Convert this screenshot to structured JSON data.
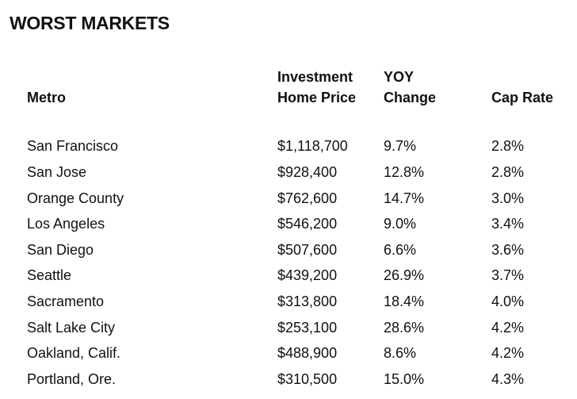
{
  "title": "WORST MARKETS",
  "columns": {
    "metro": "Metro",
    "price_line1": "Investment",
    "price_line2": "Home Price",
    "yoy_line1": "YOY",
    "yoy_line2": "Change",
    "cap_rate": "Cap Rate"
  },
  "rows": [
    {
      "metro": "San Francisco",
      "price": "$1,118,700",
      "yoy": "9.7%",
      "cap": "2.8%"
    },
    {
      "metro": "San Jose",
      "price": "$928,400",
      "yoy": "12.8%",
      "cap": "2.8%"
    },
    {
      "metro": "Orange County",
      "price": "$762,600",
      "yoy": "14.7%",
      "cap": "3.0%"
    },
    {
      "metro": "Los Angeles",
      "price": "$546,200",
      "yoy": "9.0%",
      "cap": "3.4%"
    },
    {
      "metro": "San Diego",
      "price": "$507,600",
      "yoy": "6.6%",
      "cap": "3.6%"
    },
    {
      "metro": "Seattle",
      "price": "$439,200",
      "yoy": "26.9%",
      "cap": "3.7%"
    },
    {
      "metro": "Sacramento",
      "price": "$313,800",
      "yoy": "18.4%",
      "cap": "4.0%"
    },
    {
      "metro": "Salt Lake City",
      "price": "$253,100",
      "yoy": "28.6%",
      "cap": "4.2%"
    },
    {
      "metro": "Oakland, Calif.",
      "price": "$488,900",
      "yoy": "8.6%",
      "cap": "4.2%"
    },
    {
      "metro": "Portland, Ore.",
      "price": "$310,500",
      "yoy": "15.0%",
      "cap": "4.3%"
    }
  ]
}
